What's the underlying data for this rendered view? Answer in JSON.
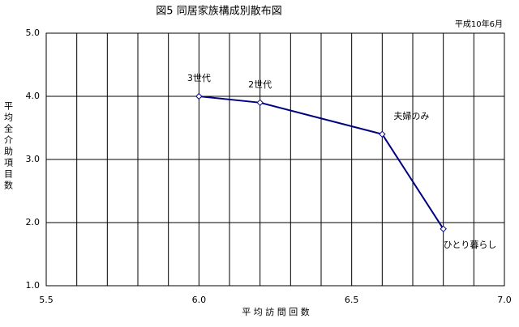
{
  "chart_data": {
    "type": "line",
    "title": "図5  同居家族構成別散布図",
    "subtitle": "平成10年6月",
    "x_label": "平 均 訪 問 回 数",
    "y_label": "平均全介助項目数",
    "series": [
      {
        "color": "#000080",
        "x": [
          6.0,
          6.2,
          6.6,
          6.8
        ],
        "values": [
          4.0,
          3.9,
          3.4,
          1.9
        ],
        "labels": [
          "3世代",
          "2世代",
          "夫婦のみ",
          "ひとり暮らし"
        ]
      }
    ],
    "xlim": [
      5.5,
      7.0
    ],
    "xticks": [
      {
        "value": 5.5,
        "label": "5.5"
      },
      {
        "value": 6,
        "label": "6.0"
      },
      {
        "value": 6.5,
        "label": "6.5"
      },
      {
        "value": 7,
        "label": "7.0"
      }
    ],
    "xgrid": [
      5.6,
      5.7,
      5.8,
      5.9,
      6.1,
      6.2,
      6.3,
      6.4,
      6.6,
      6.7,
      6.8,
      6.9
    ],
    "ylim": [
      1.0,
      5.0
    ],
    "yticks": [
      {
        "value": 1,
        "label": "1.0"
      },
      {
        "value": 2,
        "label": "2.0"
      },
      {
        "value": 3,
        "label": "3.0"
      },
      {
        "value": 4,
        "label": "4.0"
      },
      {
        "value": 5,
        "label": "5.0"
      }
    ],
    "grid": true
  }
}
